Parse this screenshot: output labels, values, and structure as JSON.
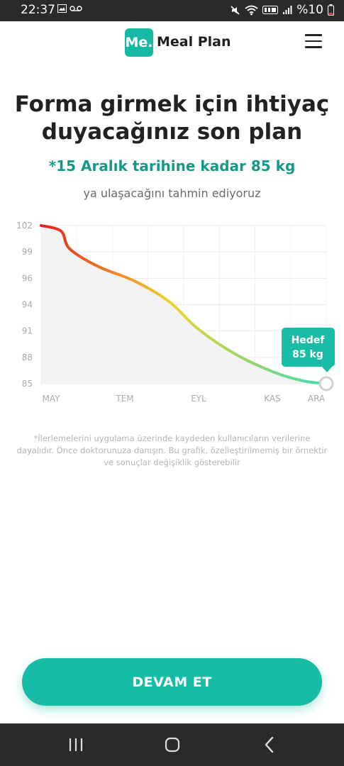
{
  "status": {
    "time": "22:37",
    "battery": "%10"
  },
  "header": {
    "logo_badge": "Me.",
    "app_name": "Meal Plan"
  },
  "main": {
    "headline": "Forma girmek için ihtiyaç duyacağınız son plan",
    "subhead": "*15 Aralık tarihine kadar 85 kg",
    "tagline": "ya ulaşacağını tahmin ediyoruz",
    "disclaimer": "*İlerlemelerini uygulama üzerinde kaydeden kullanıcıların verilerine dayalıdır. Önce doktorunuza danışın. Bu grafik, özelleştirilmemiş bir örnektir ve sonuçlar değişiklik gösterebilir",
    "continue_label": "DEVAM ET"
  },
  "chart_data": {
    "type": "area",
    "x_ticks": [
      "MAY",
      "TEM",
      "EYL",
      "KAS",
      "ARA"
    ],
    "y_ticks": [
      "102",
      "99",
      "96",
      "94",
      "91",
      "88",
      "85"
    ],
    "ylim": [
      85,
      102
    ],
    "series": [
      {
        "x": [
          0,
          0.07,
          0.1,
          0.2,
          0.33,
          0.45,
          0.55,
          0.68,
          0.82,
          0.92,
          1
        ],
        "values": [
          102,
          101.4,
          99.5,
          97.6,
          96,
          93.8,
          90.9,
          88.2,
          86.2,
          85.3,
          85
        ]
      }
    ],
    "annotation": {
      "line1": "Hedef",
      "line2": "85 kg"
    },
    "colors": {
      "start": "#e8201a",
      "mid": "#f2d22e",
      "end": "#3ddbb0",
      "fill": "#f1f2f4",
      "callout": "#1bbca7"
    }
  }
}
